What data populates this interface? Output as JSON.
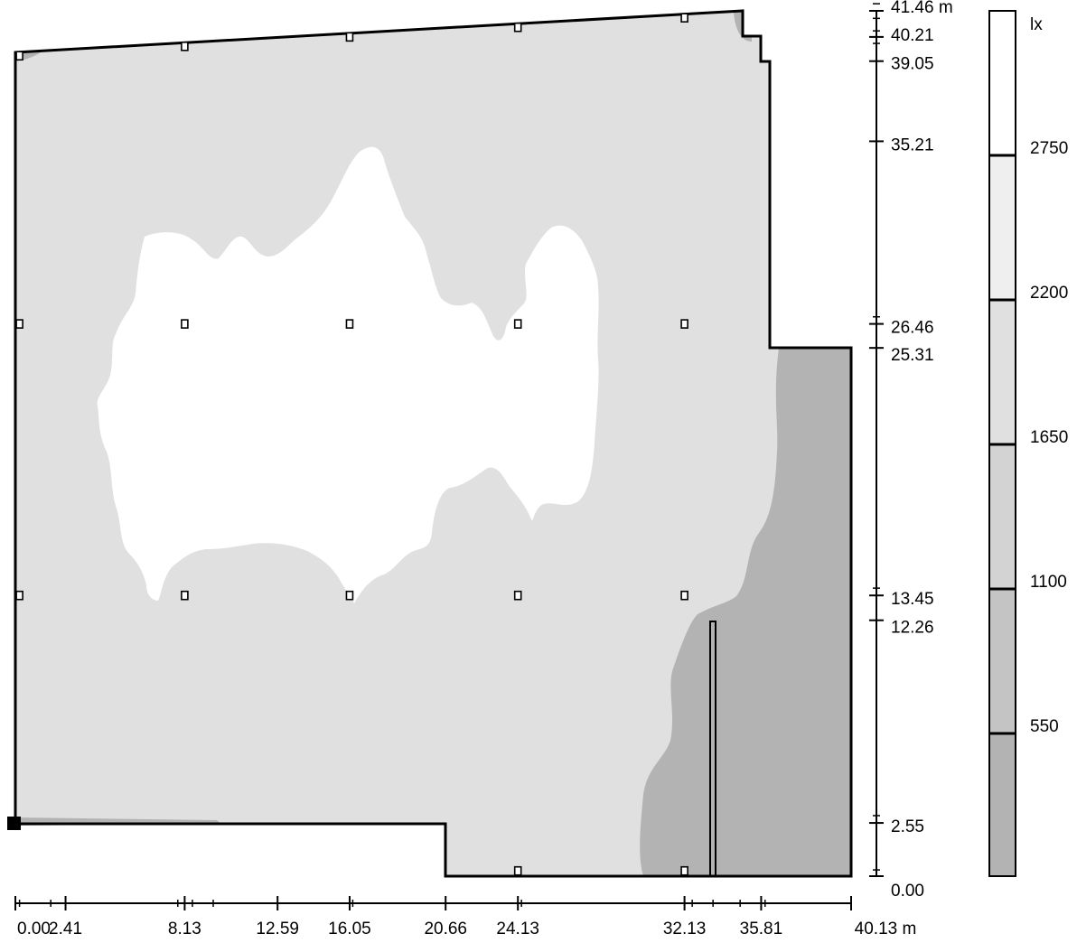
{
  "colors": {
    "zone_lt_550": "#b3b3b3",
    "zone_550_1100": "#c4c4c4",
    "zone_1100_1650": "#d3d3d3",
    "zone_1650_2200": "#e0e0e0",
    "zone_2200_2750": "#efefef",
    "zone_gt_2750": "#ffffff",
    "outline": "#000000"
  },
  "x_axis": {
    "ticks": [
      {
        "value": 0.0,
        "label": "0.00"
      },
      {
        "value": 2.41,
        "label": "2.41"
      },
      {
        "value": 8.13,
        "label": "8.13"
      },
      {
        "value": 12.59,
        "label": "12.59"
      },
      {
        "value": 16.05,
        "label": "16.05"
      },
      {
        "value": 20.66,
        "label": "20.66"
      },
      {
        "value": 24.13,
        "label": "24.13"
      },
      {
        "value": 32.13,
        "label": "32.13"
      },
      {
        "value": 35.81,
        "label": "35.81"
      },
      {
        "value": 40.13,
        "label": "40.13 m"
      }
    ],
    "minor_ticks": [
      0.2,
      1.7,
      7.8,
      8.5,
      9.5,
      16.2,
      24.3,
      32.5,
      33.5,
      34.8,
      36.0
    ]
  },
  "y_axis": {
    "ticks": [
      {
        "value": 41.46,
        "label": "41.46 m"
      },
      {
        "value": 40.21,
        "label": "40.21"
      },
      {
        "value": 39.05,
        "label": "39.05"
      },
      {
        "value": 35.21,
        "label": "35.21"
      },
      {
        "value": 26.46,
        "label": "26.46"
      },
      {
        "value": 25.31,
        "label": "25.31"
      },
      {
        "value": 13.45,
        "label": "13.45"
      },
      {
        "value": 12.26,
        "label": "12.26"
      },
      {
        "value": 2.55,
        "label": "2.55"
      },
      {
        "value": 0.0,
        "label": "0.00"
      }
    ],
    "minor_ticks": [
      41.8,
      41.1,
      40.5,
      39.9,
      26.8,
      13.8,
      2.9,
      0.3
    ]
  },
  "legend": {
    "unit": "lx",
    "levels": [
      {
        "value": 2750,
        "label": "2750"
      },
      {
        "value": 2200,
        "label": "2200"
      },
      {
        "value": 1650,
        "label": "1650"
      },
      {
        "value": 1100,
        "label": "1100"
      },
      {
        "value": 550,
        "label": "550"
      }
    ]
  },
  "luminaire_rows": [
    {
      "y": 39.5,
      "x": [
        0.2,
        8.13,
        16.05,
        24.13,
        32.13
      ]
    },
    {
      "y": 26.46,
      "x": [
        0.2,
        8.13,
        16.05,
        24.13,
        32.13
      ]
    },
    {
      "y": 13.45,
      "x": [
        0.2,
        8.13,
        16.05,
        24.13,
        32.13
      ]
    },
    {
      "y": 0.25,
      "x": [
        24.13,
        32.13
      ]
    }
  ]
}
